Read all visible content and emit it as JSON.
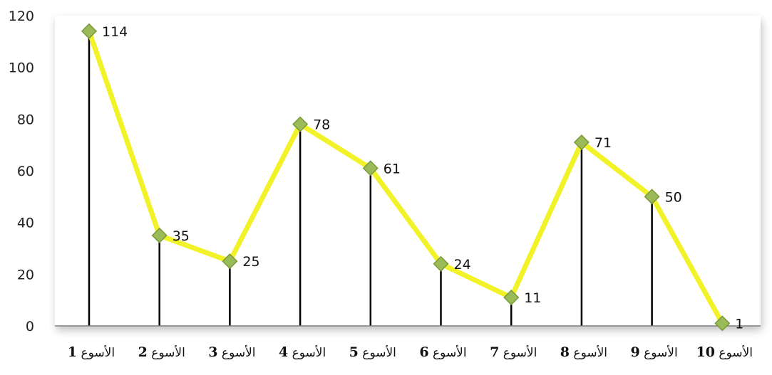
{
  "chart_data": {
    "type": "line",
    "categories": [
      "الأسوع 1",
      "الأسوع 2",
      "الأسوع 3",
      "الأسوع 4",
      "الأسوع 5",
      "الأسوع 6",
      "الأسوع 7",
      "الأسوع 8",
      "الأسوع 9",
      "الأسوع 10"
    ],
    "category_word": "الأسوع",
    "category_numbers": [
      "1",
      "2",
      "3",
      "4",
      "5",
      "6",
      "7",
      "8",
      "9",
      "10"
    ],
    "values": [
      114,
      35,
      25,
      78,
      61,
      24,
      11,
      71,
      50,
      1
    ],
    "data_labels": [
      "114",
      "35",
      "25",
      "78",
      "61",
      "24",
      "11",
      "71",
      "50",
      "1"
    ],
    "y_ticks": [
      "0",
      "20",
      "40",
      "60",
      "80",
      "100",
      "120"
    ],
    "ylim": [
      0,
      120
    ],
    "title": "",
    "xlabel": "",
    "ylabel": "",
    "grid": false,
    "drop_lines": true,
    "legend": "none",
    "colors": {
      "line": "#f2f229",
      "marker": "#9bbb59",
      "marker_border": "#7a9a3a",
      "drop_line": "#000000",
      "axis": "#7f7f7f"
    }
  }
}
